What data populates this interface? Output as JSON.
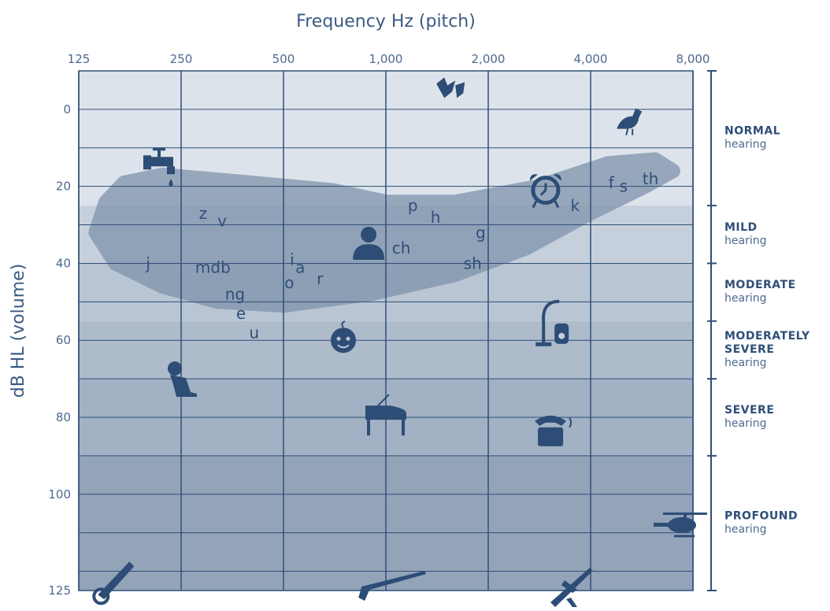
{
  "chart_data": {
    "type": "scatter",
    "title": "Frequency Hz (pitch)",
    "xlabel": "Frequency Hz (pitch)",
    "ylabel": "dB HL (volume)",
    "x_scale": "log2",
    "x_ticks": [
      125,
      250,
      500,
      1000,
      2000,
      4000,
      8000
    ],
    "x_tick_labels": [
      "125",
      "250",
      "500",
      "1,000",
      "2,000",
      "4,000",
      "8,000"
    ],
    "xlim": [
      125,
      8000
    ],
    "y_reversed": true,
    "ylim": [
      -10,
      125
    ],
    "y_ticks": [
      0,
      20,
      40,
      60,
      80,
      100,
      125
    ],
    "y_tick_labels": [
      "0",
      "20",
      "40",
      "60",
      "80",
      "100",
      "125"
    ],
    "grid": true,
    "hearing_levels": [
      {
        "name": "NORMAL",
        "sub": "hearing",
        "range": [
          -10,
          25
        ],
        "color": "#dde3ea"
      },
      {
        "name": "MILD",
        "sub": "hearing",
        "range": [
          25,
          40
        ],
        "color": "#c6d0dc"
      },
      {
        "name": "MODERATE",
        "sub": "hearing",
        "range": [
          40,
          55
        ],
        "color": "#bac5d3"
      },
      {
        "name": "MODERATELY\nSEVERE",
        "sub": "hearing",
        "range": [
          55,
          70
        ],
        "color": "#aebbcb"
      },
      {
        "name": "SEVERE",
        "sub": "hearing",
        "range": [
          70,
          90
        ],
        "color": "#a2b1c3"
      },
      {
        "name": "PROFOUND",
        "sub": "hearing",
        "range": [
          90,
          125
        ],
        "color": "#93a4b9"
      }
    ],
    "speech_banana_color": "#7f93ac",
    "phonemes": [
      {
        "label": "z",
        "x": 290,
        "y": 27
      },
      {
        "label": "v",
        "x": 330,
        "y": 29
      },
      {
        "label": "j",
        "x": 200,
        "y": 40
      },
      {
        "label": "mdb",
        "x": 310,
        "y": 41
      },
      {
        "label": "ng",
        "x": 360,
        "y": 48
      },
      {
        "label": "e",
        "x": 375,
        "y": 53
      },
      {
        "label": "u",
        "x": 410,
        "y": 58
      },
      {
        "label": "i",
        "x": 530,
        "y": 39
      },
      {
        "label": "a",
        "x": 560,
        "y": 41
      },
      {
        "label": "o",
        "x": 520,
        "y": 45
      },
      {
        "label": "r",
        "x": 640,
        "y": 44
      },
      {
        "label": "p",
        "x": 1200,
        "y": 25
      },
      {
        "label": "h",
        "x": 1400,
        "y": 28
      },
      {
        "label": "ch",
        "x": 1110,
        "y": 36
      },
      {
        "label": "g",
        "x": 1900,
        "y": 32
      },
      {
        "label": "sh",
        "x": 1800,
        "y": 40
      },
      {
        "label": "k",
        "x": 3600,
        "y": 25
      },
      {
        "label": "f",
        "x": 4600,
        "y": 19
      },
      {
        "label": "s",
        "x": 5000,
        "y": 20
      },
      {
        "label": "th",
        "x": 6000,
        "y": 18
      }
    ],
    "sound_icons": [
      {
        "name": "leaves-icon",
        "x": 1550,
        "y": -5
      },
      {
        "name": "bird-icon",
        "x": 5200,
        "y": 3
      },
      {
        "name": "dripping-faucet-icon",
        "x": 220,
        "y": 14
      },
      {
        "name": "alarm-clock-icon",
        "x": 2950,
        "y": 21
      },
      {
        "name": "woman-talking-icon",
        "x": 890,
        "y": 35
      },
      {
        "name": "vacuum-cleaner-icon",
        "x": 3100,
        "y": 56
      },
      {
        "name": "baby-icon",
        "x": 750,
        "y": 60
      },
      {
        "name": "dog-icon",
        "x": 250,
        "y": 71
      },
      {
        "name": "piano-icon",
        "x": 1000,
        "y": 79
      },
      {
        "name": "telephone-icon",
        "x": 3050,
        "y": 83
      },
      {
        "name": "helicopter-icon",
        "x": 9000,
        "y": 108
      },
      {
        "name": "chainsaw-icon",
        "x": 160,
        "y": 122
      },
      {
        "name": "rifle-icon",
        "x": 1050,
        "y": 127
      },
      {
        "name": "airplane-icon",
        "x": 3500,
        "y": 124
      }
    ]
  }
}
